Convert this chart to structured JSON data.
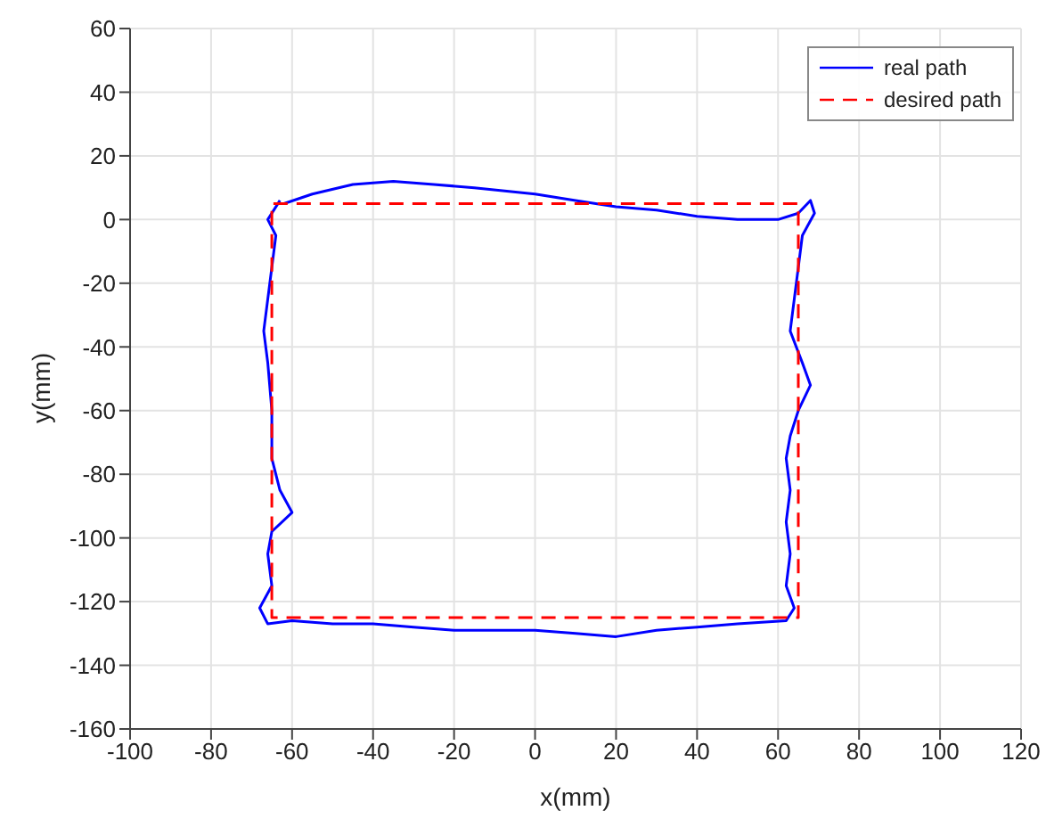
{
  "chart_data": {
    "type": "line",
    "xlabel": "x(mm)",
    "ylabel": "y(mm)",
    "xlim": [
      -100,
      120
    ],
    "ylim": [
      -160,
      60
    ],
    "xticks": [
      -100,
      -80,
      -60,
      -40,
      -20,
      0,
      20,
      40,
      60,
      80,
      100,
      120
    ],
    "yticks": [
      -160,
      -140,
      -120,
      -100,
      -80,
      -60,
      -40,
      -20,
      0,
      20,
      40,
      60
    ],
    "grid": true,
    "legend": "top right",
    "marker": "none",
    "series": [
      {
        "name": "real path",
        "color": "#0000ff",
        "line_style": "solid",
        "x": [
          -62,
          -55,
          -45,
          -35,
          -25,
          -15,
          0,
          10,
          20,
          30,
          40,
          50,
          55,
          60,
          65,
          68,
          69,
          66,
          65,
          64,
          63,
          66,
          68,
          65,
          63,
          62,
          63,
          62,
          63,
          62,
          64,
          62,
          50,
          40,
          30,
          20,
          10,
          0,
          -10,
          -20,
          -30,
          -40,
          -50,
          -60,
          -66,
          -68,
          -65,
          -66,
          -65,
          -60,
          -63,
          -65,
          -65,
          -66,
          -67,
          -66,
          -65,
          -64,
          -66,
          -64,
          -63
        ],
        "values": [
          5,
          8,
          11,
          12,
          11,
          10,
          8,
          6,
          4,
          3,
          1,
          0,
          0,
          0,
          2,
          6,
          2,
          -5,
          -15,
          -25,
          -35,
          -45,
          -52,
          -60,
          -68,
          -75,
          -85,
          -95,
          -105,
          -115,
          -122,
          -126,
          -127,
          -128,
          -129,
          -131,
          -130,
          -129,
          -129,
          -129,
          -128,
          -127,
          -127,
          -126,
          -127,
          -122,
          -115,
          -105,
          -98,
          -92,
          -85,
          -75,
          -60,
          -45,
          -35,
          -25,
          -15,
          -5,
          0,
          4,
          6
        ]
      },
      {
        "name": "desired path",
        "color": "#ff0000",
        "line_style": "dashed",
        "x": [
          -65,
          -65,
          65,
          65,
          -65,
          -65
        ],
        "values": [
          -60,
          5,
          5,
          -125,
          -125,
          -50
        ]
      }
    ]
  }
}
